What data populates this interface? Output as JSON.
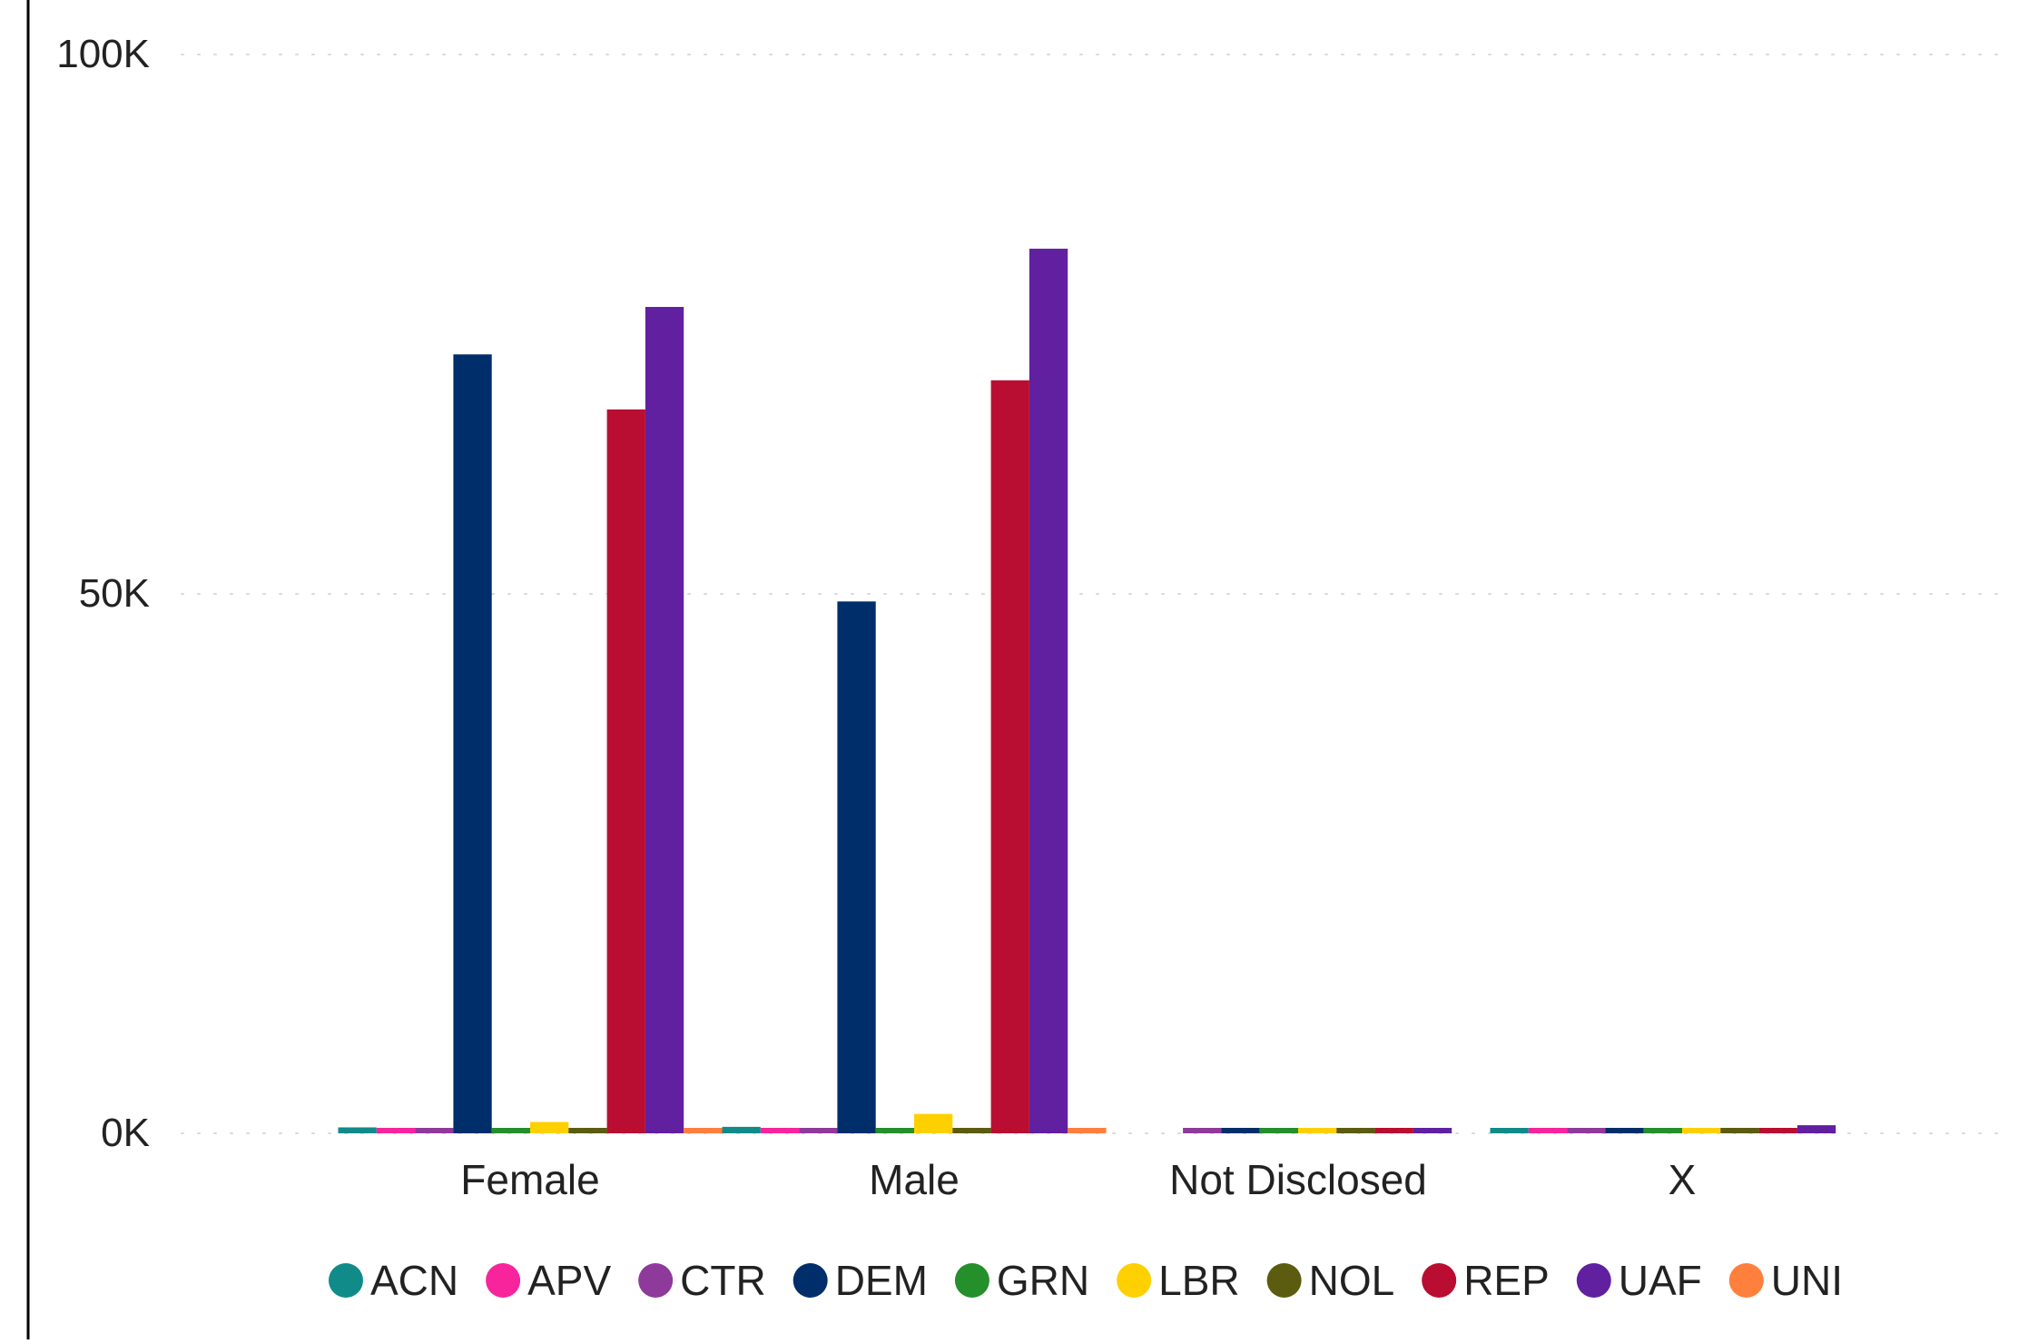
{
  "chart_data": {
    "type": "bar",
    "categories": [
      "Female",
      "Male",
      "Not Disclosed",
      "X"
    ],
    "series": [
      {
        "name": "ACN",
        "color": "#118A8A",
        "values": [
          550,
          600,
          0,
          280
        ]
      },
      {
        "name": "APV",
        "color": "#F7249C",
        "values": [
          380,
          400,
          0,
          120
        ]
      },
      {
        "name": "CTR",
        "color": "#8E3A9B",
        "values": [
          300,
          350,
          60,
          100
        ]
      },
      {
        "name": "DEM",
        "color": "#002E6A",
        "values": [
          72200,
          49300,
          80,
          200
        ]
      },
      {
        "name": "GRN",
        "color": "#248F2B",
        "values": [
          350,
          300,
          20,
          80
        ]
      },
      {
        "name": "LBR",
        "color": "#FFD000",
        "values": [
          1050,
          1800,
          30,
          160
        ]
      },
      {
        "name": "NOL",
        "color": "#5B5C10",
        "values": [
          400,
          420,
          20,
          100
        ]
      },
      {
        "name": "REP",
        "color": "#B90E31",
        "values": [
          67100,
          69800,
          60,
          150
        ]
      },
      {
        "name": "UAF",
        "color": "#6020A0",
        "values": [
          76600,
          82000,
          120,
          750
        ]
      },
      {
        "name": "UNI",
        "color": "#FF7F3C",
        "values": [
          420,
          350,
          0,
          0
        ]
      }
    ],
    "yticks": [
      "0K",
      "50K",
      "100K"
    ],
    "ytick_values": [
      0,
      50000,
      100000
    ],
    "ylim": [
      0,
      100000
    ],
    "legend_position": "bottom",
    "grid": true
  }
}
